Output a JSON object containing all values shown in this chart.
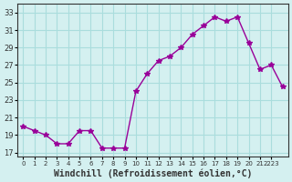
{
  "x": [
    0,
    1,
    2,
    3,
    4,
    5,
    6,
    7,
    8,
    9,
    10,
    11,
    12,
    13,
    14,
    15,
    16,
    17,
    18,
    19,
    20,
    21,
    22,
    23
  ],
  "y": [
    20.0,
    19.5,
    19.0,
    18.0,
    18.0,
    19.5,
    19.5,
    17.5,
    17.5,
    17.5,
    24.0,
    26.0,
    27.5,
    28.0,
    29.0,
    30.5,
    31.5,
    32.5,
    32.0,
    32.5,
    29.5,
    26.5,
    27.0,
    24.5
  ],
  "line_color": "#990099",
  "marker": "*",
  "marker_size": 4,
  "bg_color": "#d4f0f0",
  "grid_color": "#aadddd",
  "xlabel": "Windchill (Refroidissement éolien,°C)",
  "xlabel_fontsize": 7,
  "xtick_positions": [
    0,
    1,
    2,
    3,
    4,
    5,
    6,
    7,
    8,
    9,
    10,
    11,
    12,
    13,
    14,
    15,
    16,
    17,
    18,
    19,
    20,
    21,
    22
  ],
  "xtick_labels": [
    "0",
    "1",
    "2",
    "3",
    "4",
    "5",
    "6",
    "7",
    "8",
    "9",
    "10",
    "11",
    "12",
    "13",
    "14",
    "15",
    "16",
    "17",
    "18",
    "19",
    "20",
    "21",
    "2223"
  ],
  "ytick_values": [
    17,
    19,
    21,
    23,
    25,
    27,
    29,
    31,
    33
  ],
  "ylim": [
    16.5,
    34.0
  ],
  "xlim": [
    -0.5,
    23.5
  ]
}
